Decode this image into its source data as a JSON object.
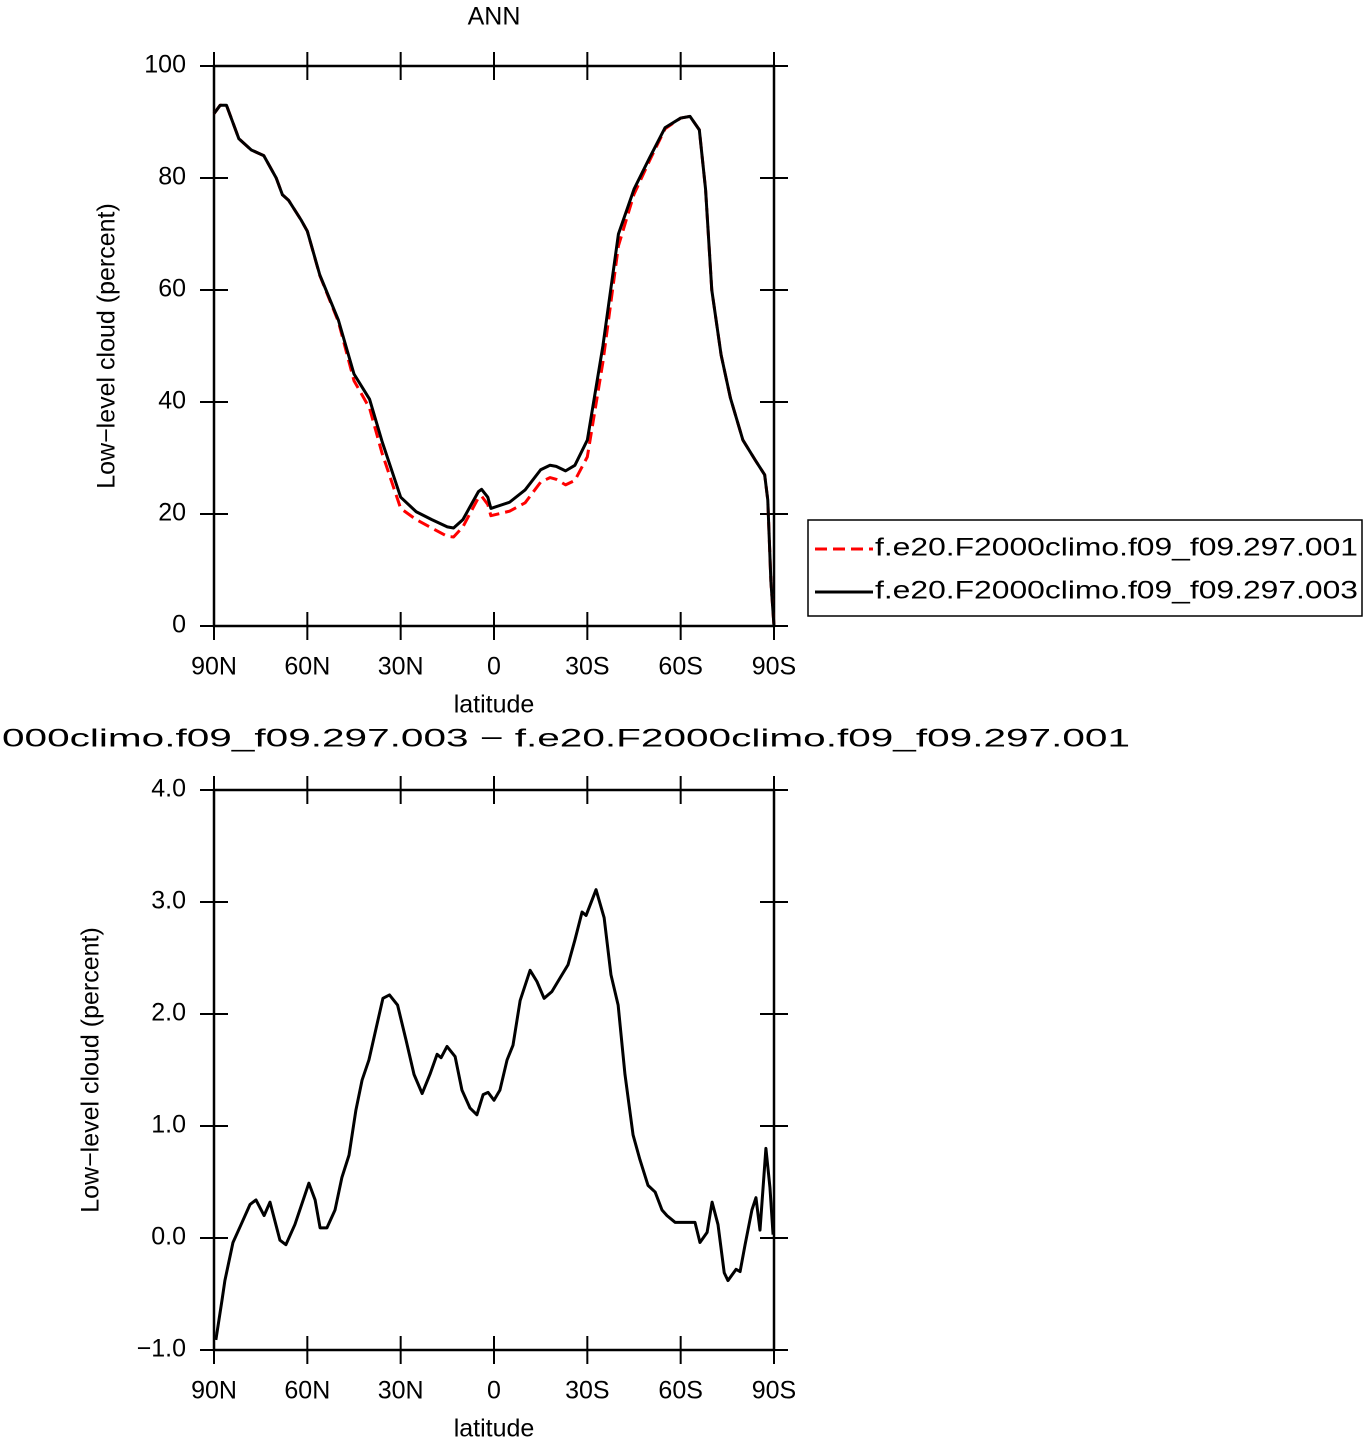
{
  "chart_data": [
    {
      "type": "line",
      "title": "ANN",
      "xlabel": "latitude",
      "ylabel": "Low−level cloud (percent)",
      "x": [
        90,
        88,
        86,
        84,
        82,
        78,
        74,
        70,
        68,
        66,
        62,
        60,
        56,
        50,
        45,
        40,
        36,
        30,
        25,
        20,
        15,
        13,
        10,
        8,
        5,
        4,
        2,
        1,
        -5,
        -10,
        -15,
        -18,
        -20,
        -23,
        -26,
        -30,
        -35,
        -40,
        -45,
        -50,
        -55,
        -60,
        -63,
        -66,
        -68,
        -70,
        -73,
        -76,
        -80,
        -84,
        -87,
        -88,
        -89,
        -90
      ],
      "series": [
        {
          "name": "f.e20.F2000climo.f09_f09.297.001",
          "color": "#ff0000",
          "style": "dashed",
          "values": [
            91.5,
            93,
            93,
            90,
            87,
            85,
            84,
            80,
            77,
            76,
            72.5,
            70.5,
            62.6,
            54.3,
            43.8,
            38.9,
            30.9,
            21,
            19,
            17.5,
            16,
            15.9,
            17.7,
            19.8,
            22.9,
            23.2,
            21.7,
            19.7,
            20.5,
            22,
            25.7,
            26.5,
            26.2,
            25.2,
            26,
            30.2,
            47.1,
            67.9,
            77.1,
            83.1,
            88.8,
            90.7,
            91,
            88.6,
            78,
            60,
            48.4,
            40.7,
            33.2,
            29.6,
            27,
            22.5,
            8,
            0
          ]
        },
        {
          "name": "f.e20.F2000climo.f09_f09.297.003",
          "color": "#000000",
          "style": "solid",
          "values": [
            91.5,
            93,
            93,
            90,
            87,
            85,
            84,
            80,
            77,
            76,
            72.5,
            70.5,
            62.7,
            54.6,
            45,
            40.5,
            33,
            23,
            20.4,
            19,
            17.7,
            17.5,
            19,
            21,
            24,
            24.4,
            23,
            21,
            22.1,
            24.3,
            27.9,
            28.7,
            28.5,
            27.7,
            28.7,
            33.2,
            50,
            70,
            78,
            83.6,
            89,
            90.7,
            91,
            88.6,
            78,
            60,
            48.4,
            40.7,
            33.2,
            29.6,
            27,
            22.5,
            8,
            0
          ]
        }
      ],
      "xlim": [
        90,
        -90
      ],
      "xticks": [
        {
          "value": 90,
          "label": "90N"
        },
        {
          "value": 60,
          "label": "60N"
        },
        {
          "value": 30,
          "label": "30N"
        },
        0,
        {
          "value": -30,
          "label": "30S"
        },
        {
          "value": -60,
          "label": "60S"
        },
        {
          "value": -90,
          "label": "90S"
        }
      ],
      "ylim": [
        0,
        100
      ],
      "yticks": [
        0,
        20,
        40,
        60,
        80,
        100
      ],
      "legend": "right"
    },
    {
      "type": "line",
      "title": "000climo.f09_f09.297.003 − f.e20.F2000climo.f09_f09.297.001",
      "xlabel": "latitude",
      "ylabel": "Low−level cloud (percent)",
      "x": [
        89.4,
        87.4,
        86.5,
        83.9,
        81.3,
        78.4,
        76.5,
        73.9,
        72,
        68.8,
        66.9,
        64,
        59.5,
        57.5,
        55.9,
        53.7,
        51.1,
        48.9,
        46.6,
        44.4,
        42.4,
        40.2,
        38,
        35.7,
        33.6,
        31,
        28.3,
        25.7,
        23.1,
        20.6,
        18.3,
        17,
        15.1,
        12.5,
        10.3,
        7.7,
        5.5,
        3.5,
        1.9,
        0,
        -1.9,
        -4.2,
        -6.1,
        -8.4,
        -11.6,
        -13.8,
        -16.1,
        -18.6,
        -21.2,
        -23.8,
        -26,
        -28.3,
        -29.6,
        -32.8,
        -35.4,
        -37.6,
        -39.9,
        -42.1,
        -44.7,
        -46.9,
        -49.5,
        -51.8,
        -54,
        -55.6,
        -58.2,
        -60.1,
        -62.4,
        -64.6,
        -66.2,
        -68.5,
        -70.1,
        -72,
        -74,
        -75.2,
        -77.8,
        -79.1,
        -80.7,
        -82.9,
        -84.2,
        -85.5,
        -87.4,
        -88.7,
        -89.7
      ],
      "values": [
        -0.91,
        -0.55,
        -0.38,
        -0.04,
        0.12,
        0.3,
        0.34,
        0.2,
        0.32,
        -0.02,
        -0.06,
        0.12,
        0.49,
        0.34,
        0.09,
        0.09,
        0.25,
        0.54,
        0.74,
        1.14,
        1.41,
        1.59,
        1.86,
        2.14,
        2.17,
        2.08,
        1.77,
        1.46,
        1.29,
        1.46,
        1.64,
        1.61,
        1.71,
        1.62,
        1.32,
        1.16,
        1.1,
        1.28,
        1.3,
        1.23,
        1.32,
        1.59,
        1.72,
        2.12,
        2.39,
        2.29,
        2.14,
        2.2,
        2.32,
        2.44,
        2.66,
        2.91,
        2.88,
        3.11,
        2.86,
        2.35,
        2.08,
        1.46,
        0.92,
        0.7,
        0.47,
        0.41,
        0.25,
        0.2,
        0.14,
        0.14,
        0.14,
        0.14,
        -0.04,
        0.05,
        0.32,
        0.12,
        -0.31,
        -0.38,
        -0.28,
        -0.3,
        -0.06,
        0.25,
        0.36,
        0.07,
        0.8,
        0.45,
        0.03
      ],
      "color": "#000000",
      "xlim": [
        90,
        -90
      ],
      "xticks": [
        {
          "value": 90,
          "label": "90N"
        },
        {
          "value": 60,
          "label": "60N"
        },
        {
          "value": 30,
          "label": "30N"
        },
        0,
        {
          "value": -30,
          "label": "30S"
        },
        {
          "value": -60,
          "label": "60S"
        },
        {
          "value": -90,
          "label": "90S"
        }
      ],
      "ylim": [
        -1,
        4
      ],
      "yticks": [
        {
          "value": -1,
          "label": "−1.0"
        },
        {
          "value": 0,
          "label": "0.0"
        },
        {
          "value": 1,
          "label": "1.0"
        },
        {
          "value": 2,
          "label": "2.0"
        },
        {
          "value": 3,
          "label": "3.0"
        },
        {
          "value": 4,
          "label": "4.0"
        }
      ]
    }
  ]
}
